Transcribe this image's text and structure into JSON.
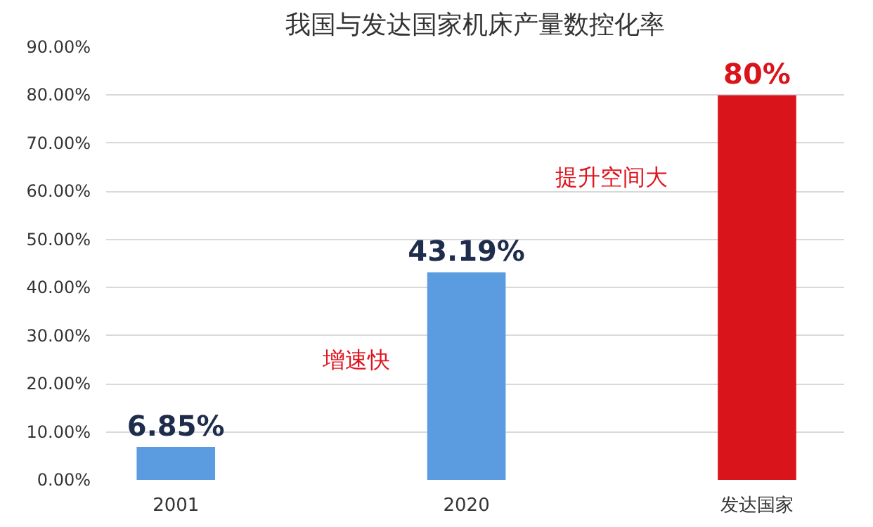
{
  "chart_data": {
    "type": "bar",
    "title": "我国与发达国家机床产量数控化率",
    "categories": [
      "2001",
      "2020",
      "发达国家"
    ],
    "values": [
      6.85,
      43.19,
      80
    ],
    "colors": [
      "#5b9be0",
      "#5b9be0",
      "#d9141b"
    ],
    "value_labels": [
      "6.85%",
      "43.19%",
      "80%"
    ],
    "ylim": [
      0,
      90
    ],
    "yticks": [
      {
        "value": 0,
        "label": "0.00%"
      },
      {
        "value": 10,
        "label": "10.00%"
      },
      {
        "value": 20,
        "label": "20.00%"
      },
      {
        "value": 30,
        "label": "30.00%"
      },
      {
        "value": 40,
        "label": "40.00%"
      },
      {
        "value": 50,
        "label": "50.00%"
      },
      {
        "value": 60,
        "label": "60.00%"
      },
      {
        "value": 70,
        "label": "70.00%"
      },
      {
        "value": 80,
        "label": "80.00%"
      },
      {
        "value": 90,
        "label": "90.00%"
      }
    ],
    "grid": "y",
    "annotations": [
      "增速快",
      "提升空间大"
    ]
  }
}
